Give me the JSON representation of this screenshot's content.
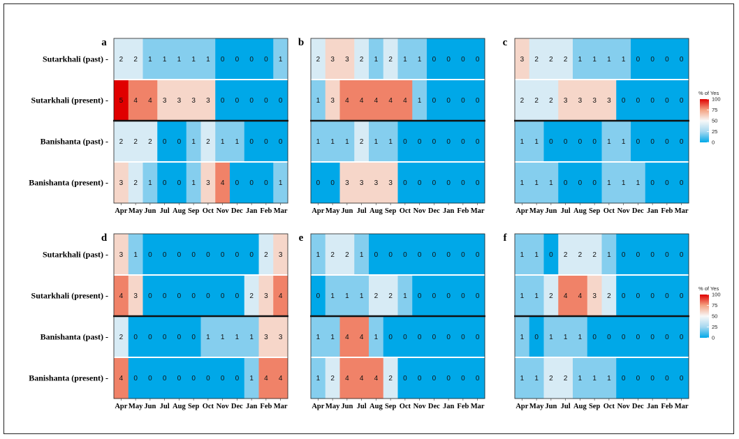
{
  "colors": {
    "scale": [
      "#00a8e8",
      "#a6d8f0",
      "#f8f8f8",
      "#f4a282",
      "#e00000"
    ],
    "separator": "#111111"
  },
  "legend": {
    "title": "% of Yes",
    "ticks": [
      100,
      75,
      50,
      25,
      0
    ]
  },
  "chart_data": {
    "type": "heatmap",
    "months": [
      "Apr",
      "May",
      "Jun",
      "Jul",
      "Aug",
      "Sep",
      "Oct",
      "Nov",
      "Dec",
      "Jan",
      "Feb",
      "Mar"
    ],
    "rows": [
      "Sutarkhali (past)",
      "Sutarkhali (present)",
      "Banishanta (past)",
      "Banishanta (present)"
    ],
    "max_value": 5,
    "panels": [
      {
        "label": "a",
        "values": [
          [
            2,
            2,
            1,
            1,
            1,
            1,
            1,
            0,
            0,
            0,
            0,
            1
          ],
          [
            5,
            4,
            4,
            3,
            3,
            3,
            3,
            0,
            0,
            0,
            0,
            0
          ],
          [
            2,
            2,
            2,
            0,
            0,
            1,
            2,
            1,
            1,
            0,
            0,
            0
          ],
          [
            3,
            2,
            1,
            0,
            0,
            1,
            3,
            4,
            0,
            0,
            0,
            1
          ]
        ]
      },
      {
        "label": "b",
        "values": [
          [
            2,
            3,
            3,
            2,
            1,
            2,
            1,
            1,
            0,
            0,
            0,
            0
          ],
          [
            1,
            3,
            4,
            4,
            4,
            4,
            4,
            1,
            0,
            0,
            0,
            0
          ],
          [
            1,
            1,
            1,
            2,
            1,
            1,
            0,
            0,
            0,
            0,
            0,
            0
          ],
          [
            0,
            0,
            3,
            3,
            3,
            3,
            0,
            0,
            0,
            0,
            0,
            0
          ]
        ]
      },
      {
        "label": "c",
        "values": [
          [
            3,
            2,
            2,
            2,
            1,
            1,
            1,
            1,
            0,
            0,
            0,
            0
          ],
          [
            2,
            2,
            2,
            3,
            3,
            3,
            3,
            0,
            0,
            0,
            0,
            0
          ],
          [
            1,
            1,
            0,
            0,
            0,
            0,
            1,
            1,
            0,
            0,
            0,
            0
          ],
          [
            1,
            1,
            1,
            0,
            0,
            0,
            1,
            1,
            1,
            0,
            0,
            0
          ]
        ]
      },
      {
        "label": "d",
        "values": [
          [
            3,
            1,
            0,
            0,
            0,
            0,
            0,
            0,
            0,
            0,
            2,
            3
          ],
          [
            4,
            3,
            0,
            0,
            0,
            0,
            0,
            0,
            0,
            2,
            3,
            4
          ],
          [
            2,
            0,
            0,
            0,
            0,
            0,
            1,
            1,
            1,
            1,
            3,
            3
          ],
          [
            4,
            0,
            0,
            0,
            0,
            0,
            0,
            0,
            0,
            1,
            4,
            4
          ]
        ]
      },
      {
        "label": "e",
        "values": [
          [
            1,
            2,
            2,
            1,
            0,
            0,
            0,
            0,
            0,
            0,
            0,
            0
          ],
          [
            0,
            1,
            1,
            1,
            2,
            2,
            1,
            0,
            0,
            0,
            0,
            0
          ],
          [
            1,
            1,
            4,
            4,
            1,
            0,
            0,
            0,
            0,
            0,
            0,
            0
          ],
          [
            1,
            2,
            4,
            4,
            4,
            2,
            0,
            0,
            0,
            0,
            0,
            0
          ]
        ]
      },
      {
        "label": "f",
        "values": [
          [
            1,
            1,
            0,
            2,
            2,
            2,
            1,
            0,
            0,
            0,
            0,
            0
          ],
          [
            1,
            1,
            2,
            4,
            4,
            3,
            2,
            0,
            0,
            0,
            0,
            0
          ],
          [
            1,
            0,
            1,
            1,
            1,
            0,
            0,
            0,
            0,
            0,
            0,
            0
          ],
          [
            1,
            1,
            2,
            2,
            1,
            1,
            1,
            0,
            0,
            0,
            0,
            0
          ]
        ]
      }
    ]
  }
}
